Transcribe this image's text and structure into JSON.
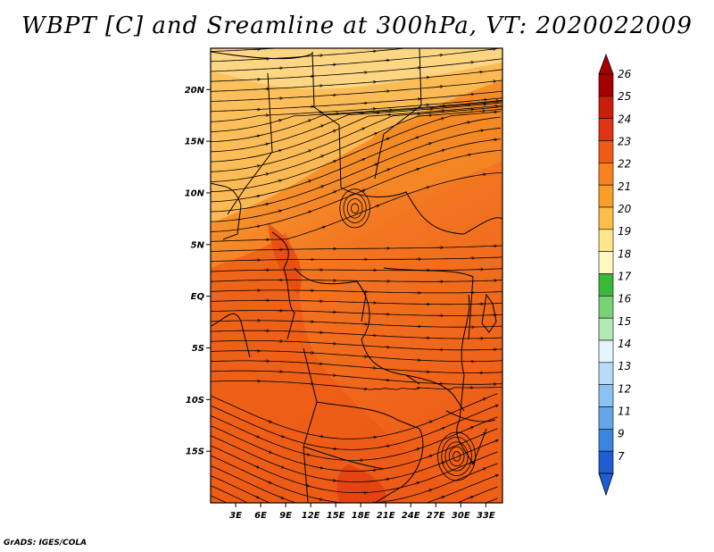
{
  "title": "WBPT [C] and Sreamline at 300hPa, VT: 2020022009",
  "credit": "GrADS: IGES/COLA",
  "map": {
    "lon_range": [
      0,
      35
    ],
    "lat_range": [
      -20,
      24
    ],
    "lat_ticks": [
      {
        "value": 20,
        "label": "20N"
      },
      {
        "value": 15,
        "label": "15N"
      },
      {
        "value": 10,
        "label": "10N"
      },
      {
        "value": 5,
        "label": "5N"
      },
      {
        "value": 0,
        "label": "EQ"
      },
      {
        "value": -5,
        "label": "5S"
      },
      {
        "value": -10,
        "label": "10S"
      },
      {
        "value": -15,
        "label": "15S"
      }
    ],
    "lon_ticks": [
      {
        "value": 3,
        "label": "3E"
      },
      {
        "value": 6,
        "label": "6E"
      },
      {
        "value": 9,
        "label": "9E"
      },
      {
        "value": 12,
        "label": "12E"
      },
      {
        "value": 15,
        "label": "15E"
      },
      {
        "value": 18,
        "label": "18E"
      },
      {
        "value": 21,
        "label": "21E"
      },
      {
        "value": 24,
        "label": "24E"
      },
      {
        "value": 27,
        "label": "27E"
      },
      {
        "value": 30,
        "label": "30E"
      },
      {
        "value": 33,
        "label": "33E"
      }
    ]
  },
  "colorbar": {
    "levels": [
      {
        "label": "26",
        "color": "#a50000"
      },
      {
        "label": "25",
        "color": "#c81e0a"
      },
      {
        "label": "24",
        "color": "#e03214"
      },
      {
        "label": "23",
        "color": "#f05a14"
      },
      {
        "label": "22",
        "color": "#f8821e"
      },
      {
        "label": "21",
        "color": "#fa9e28"
      },
      {
        "label": "20",
        "color": "#fcbe46"
      },
      {
        "label": "19",
        "color": "#fee68c"
      },
      {
        "label": "18",
        "color": "#fdf8c0"
      },
      {
        "label": "17",
        "color": "#3ab83a"
      },
      {
        "label": "16",
        "color": "#78d278"
      },
      {
        "label": "15",
        "color": "#b4e8b4"
      },
      {
        "label": "14",
        "color": "#e6f5fc"
      },
      {
        "label": "13",
        "color": "#b8dcf8"
      },
      {
        "label": "12",
        "color": "#8cc2f2"
      },
      {
        "label": "11",
        "color": "#64a6ea"
      },
      {
        "label": "9",
        "color": "#3c86e0"
      },
      {
        "label": "7",
        "color": "#1e5ed2"
      }
    ]
  }
}
